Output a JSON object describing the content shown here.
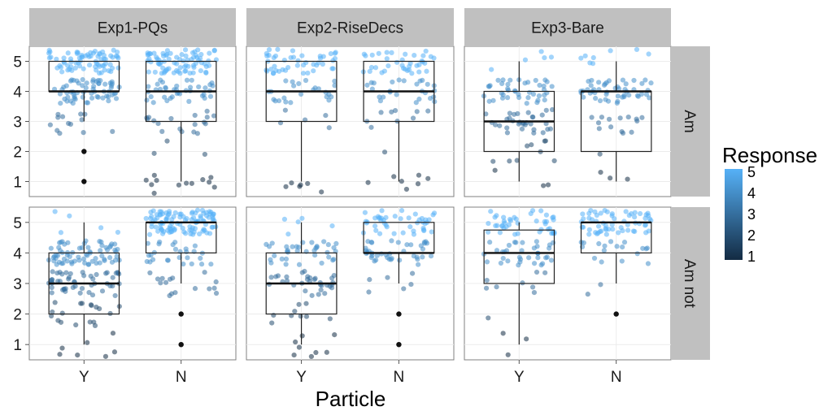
{
  "chart_data": {
    "type": "box-with-jitter",
    "xlabel": "Particle",
    "categories": [
      "Y",
      "N"
    ],
    "columns": [
      "Exp1-PQs",
      "Exp2-RiseDecs",
      "Exp3-Bare"
    ],
    "rows": [
      "Am",
      "Am not"
    ],
    "ylim": [
      0.5,
      5.5
    ],
    "yticks": [
      1,
      2,
      3,
      4,
      5
    ],
    "legend": {
      "title": "Response",
      "ticks": [
        1,
        2,
        3,
        4,
        5
      ],
      "placement": "right",
      "low_color": "#132b43",
      "high_color": "#56b1f7"
    },
    "grid": true,
    "panels": [
      {
        "row": "Am",
        "col": "Exp1-PQs",
        "boxes": [
          {
            "category": "Y",
            "q1": 4,
            "median": 4,
            "q3": 5,
            "whisker_low": 3,
            "whisker_high": 5,
            "outliers": [
              2,
              1
            ],
            "n": 150
          },
          {
            "category": "N",
            "q1": 3,
            "median": 4,
            "q3": 5,
            "whisker_low": 1,
            "whisker_high": 5,
            "outliers": [],
            "n": 150
          }
        ]
      },
      {
        "row": "Am",
        "col": "Exp2-RiseDecs",
        "boxes": [
          {
            "category": "Y",
            "q1": 3,
            "median": 4,
            "q3": 5,
            "whisker_low": 1,
            "whisker_high": 5,
            "outliers": [],
            "n": 80
          },
          {
            "category": "N",
            "q1": 3,
            "median": 4,
            "q3": 5,
            "whisker_low": 1,
            "whisker_high": 5,
            "outliers": [],
            "n": 80
          }
        ]
      },
      {
        "row": "Am",
        "col": "Exp3-Bare",
        "boxes": [
          {
            "category": "Y",
            "q1": 2,
            "median": 3,
            "q3": 4,
            "whisker_low": 1,
            "whisker_high": 5,
            "outliers": [],
            "n": 90
          },
          {
            "category": "N",
            "q1": 2,
            "median": 4,
            "q3": 4,
            "whisker_low": 1,
            "whisker_high": 5,
            "outliers": [],
            "n": 75
          }
        ]
      },
      {
        "row": "Am not",
        "col": "Exp1-PQs",
        "boxes": [
          {
            "category": "Y",
            "q1": 2,
            "median": 3,
            "q3": 4,
            "whisker_low": 1,
            "whisker_high": 5,
            "outliers": [],
            "n": 150
          },
          {
            "category": "N",
            "q1": 4,
            "median": 5,
            "q3": 5,
            "whisker_low": 3,
            "whisker_high": 5,
            "outliers": [
              2,
              1
            ],
            "n": 150
          }
        ]
      },
      {
        "row": "Am not",
        "col": "Exp2-RiseDecs",
        "boxes": [
          {
            "category": "Y",
            "q1": 2,
            "median": 3,
            "q3": 4,
            "whisker_low": 1,
            "whisker_high": 5,
            "outliers": [],
            "n": 90
          },
          {
            "category": "N",
            "q1": 4,
            "median": 4,
            "q3": 5,
            "whisker_low": 3,
            "whisker_high": 5,
            "outliers": [
              2,
              1
            ],
            "n": 90
          }
        ]
      },
      {
        "row": "Am not",
        "col": "Exp3-Bare",
        "boxes": [
          {
            "category": "Y",
            "q1": 3,
            "median": 4,
            "q3": 4.75,
            "whisker_low": 1,
            "whisker_high": 5,
            "outliers": [],
            "n": 90
          },
          {
            "category": "N",
            "q1": 4,
            "median": 5,
            "q3": 5,
            "whisker_low": 3,
            "whisker_high": 5,
            "outliers": [
              2
            ],
            "n": 80
          }
        ]
      }
    ]
  }
}
